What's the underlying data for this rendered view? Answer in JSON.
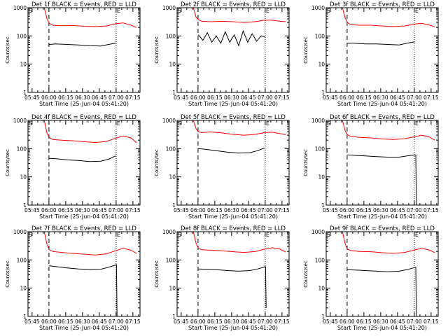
{
  "page": {
    "background": "#ffffff",
    "axis_color": "#000000",
    "events_color": "#000000",
    "lld_color": "#ff0000"
  },
  "common": {
    "xlabel": "Start Time (25-Jun-04 05:41:20)",
    "ylabel": "Counts/sec",
    "xtick_labels": [
      "05:45",
      "06:00",
      "06:15",
      "06:30",
      "06:45",
      "07:00",
      "07:15"
    ],
    "ytick_labels": [
      "1",
      "10",
      "100",
      "1000"
    ],
    "marker_s": "S",
    "marker_e": "E"
  },
  "chart_data": [
    {
      "type": "line",
      "title": "Det 1f BLACK = Events, RED = LLD",
      "xlabel": "Start Time (25-Jun-04 05:41:20)",
      "ylabel": "Counts/sec",
      "xlim_min": [
        0,
        100
      ],
      "ylim": [
        1,
        1000
      ],
      "yscale": "log",
      "dashed_line_min": 18.7,
      "dotted_line_min": 78.7,
      "series": [
        {
          "name": "RED = LLD",
          "color": "#ff0000",
          "x": [
            14.5,
            17,
            19,
            22,
            30,
            40,
            50,
            60,
            70,
            78,
            85,
            92,
            97
          ],
          "y": [
            1000,
            400,
            280,
            240,
            230,
            235,
            220,
            215,
            225,
            270,
            290,
            240,
            200
          ]
        },
        {
          "name": "BLACK = Events",
          "color": "#000000",
          "x": [
            19,
            25,
            35,
            45,
            55,
            65,
            72,
            78
          ],
          "y": [
            50,
            52,
            50,
            48,
            45,
            44,
            50,
            55
          ]
        }
      ]
    },
    {
      "type": "line",
      "title": "Det 2f BLACK = Events, RED = LLD",
      "xlabel": "Start Time (25-Jun-04 05:41:20)",
      "ylabel": "Counts/sec",
      "xlim_min": [
        0,
        100
      ],
      "ylim": [
        1,
        1000
      ],
      "yscale": "log",
      "dashed_line_min": 18.7,
      "dotted_line_min": 78.7,
      "series": [
        {
          "name": "RED = LLD",
          "color": "#ff0000",
          "x": [
            14.5,
            17,
            19,
            22,
            30,
            40,
            50,
            60,
            70,
            78,
            85,
            92,
            97
          ],
          "y": [
            1000,
            450,
            380,
            330,
            320,
            330,
            320,
            300,
            320,
            360,
            360,
            330,
            320
          ]
        },
        {
          "name": "BLACK = Events",
          "color": "#000000",
          "x": [
            19,
            23,
            27,
            31,
            35,
            39,
            43,
            47,
            51,
            55,
            59,
            63,
            67,
            71,
            75,
            79
          ],
          "y": [
            110,
            70,
            130,
            60,
            100,
            55,
            140,
            60,
            110,
            45,
            150,
            60,
            120,
            65,
            100,
            90
          ]
        }
      ]
    },
    {
      "type": "line",
      "title": "Det 3f BLACK = Events, RED = LLD",
      "xlabel": "Start Time (25-Jun-04 05:41:20)",
      "ylabel": "Counts/sec",
      "xlim_min": [
        0,
        100
      ],
      "ylim": [
        1,
        1000
      ],
      "yscale": "log",
      "dashed_line_min": 18.7,
      "dotted_line_min": 78.7,
      "series": [
        {
          "name": "RED = LLD",
          "color": "#ff0000",
          "x": [
            14.5,
            17,
            19,
            22,
            30,
            40,
            50,
            60,
            70,
            78,
            85,
            92,
            97
          ],
          "y": [
            1000,
            420,
            300,
            250,
            240,
            240,
            225,
            215,
            225,
            260,
            280,
            245,
            210
          ]
        },
        {
          "name": "BLACK = Events",
          "color": "#000000",
          "x": [
            19,
            25,
            35,
            45,
            55,
            65,
            72,
            79
          ],
          "y": [
            55,
            55,
            52,
            52,
            50,
            48,
            55,
            62
          ]
        }
      ]
    },
    {
      "type": "line",
      "title": "Det 4f BLACK = Events, RED = LLD",
      "xlabel": "Start Time (25-Jun-04 05:41:20)",
      "ylabel": "Counts/sec",
      "xlim_min": [
        0,
        100
      ],
      "ylim": [
        1,
        1000
      ],
      "yscale": "log",
      "dashed_line_min": 18.7,
      "dotted_line_min": 78.7,
      "series": [
        {
          "name": "RED = LLD",
          "color": "#ff0000",
          "x": [
            14.5,
            17,
            19,
            22,
            30,
            40,
            50,
            60,
            70,
            78,
            85,
            92,
            97
          ],
          "y": [
            1000,
            350,
            250,
            210,
            200,
            190,
            175,
            165,
            180,
            230,
            280,
            240,
            160
          ]
        },
        {
          "name": "BLACK = Events",
          "color": "#000000",
          "x": [
            19,
            25,
            35,
            45,
            55,
            65,
            72,
            78
          ],
          "y": [
            45,
            44,
            40,
            38,
            35,
            36,
            42,
            55
          ]
        }
      ]
    },
    {
      "type": "line",
      "title": "Det 5f BLACK = Events, RED = LLD",
      "xlabel": "Start Time (25-Jun-04 05:41:20)",
      "ylabel": "Counts/sec",
      "xlim_min": [
        0,
        100
      ],
      "ylim": [
        1,
        1000
      ],
      "yscale": "log",
      "dashed_line_min": 18.7,
      "dotted_line_min": 78.7,
      "series": [
        {
          "name": "RED = LLD",
          "color": "#ff0000",
          "x": [
            14.5,
            17,
            19,
            22,
            30,
            40,
            50,
            60,
            70,
            78,
            85,
            92,
            97
          ],
          "y": [
            1000,
            500,
            400,
            370,
            390,
            360,
            320,
            300,
            320,
            370,
            380,
            340,
            310
          ]
        },
        {
          "name": "BLACK = Events",
          "color": "#000000",
          "x": [
            19,
            25,
            35,
            45,
            55,
            65,
            72,
            78
          ],
          "y": [
            100,
            95,
            85,
            75,
            70,
            72,
            85,
            105
          ]
        }
      ]
    },
    {
      "type": "line",
      "title": "Det 6f BLACK = Events, RED = LLD",
      "xlabel": "Start Time (25-Jun-04 05:41:20)",
      "ylabel": "Counts/sec",
      "xlim_min": [
        0,
        100
      ],
      "ylim": [
        1,
        1000
      ],
      "yscale": "log",
      "dashed_line_min": 18.7,
      "dotted_line_min": 78.7,
      "series": [
        {
          "name": "RED = LLD",
          "color": "#ff0000",
          "x": [
            14.5,
            17,
            19,
            22,
            30,
            40,
            50,
            60,
            70,
            78,
            85,
            92,
            97
          ],
          "y": [
            1000,
            420,
            310,
            270,
            250,
            240,
            220,
            210,
            225,
            260,
            300,
            260,
            200
          ]
        },
        {
          "name": "BLACK = Events",
          "color": "#000000",
          "x": [
            19,
            25,
            35,
            45,
            55,
            65,
            72,
            80,
            80.5
          ],
          "y": [
            60,
            58,
            55,
            52,
            50,
            50,
            55,
            60,
            1
          ]
        }
      ]
    },
    {
      "type": "line",
      "title": "Det 7f BLACK = Events, RED = LLD",
      "xlabel": "Start Time (25-Jun-04 05:41:20)",
      "ylabel": "Counts/sec",
      "xlim_min": [
        0,
        100
      ],
      "ylim": [
        1,
        1000
      ],
      "yscale": "log",
      "dashed_line_min": 18.7,
      "dotted_line_min": 78.7,
      "series": [
        {
          "name": "RED = LLD",
          "color": "#ff0000",
          "x": [
            14.5,
            17,
            19,
            22,
            30,
            40,
            50,
            60,
            70,
            78,
            85,
            92,
            97
          ],
          "y": [
            1000,
            350,
            230,
            200,
            185,
            170,
            160,
            150,
            165,
            210,
            260,
            220,
            170
          ]
        },
        {
          "name": "BLACK = Events",
          "color": "#000000",
          "x": [
            19,
            25,
            35,
            45,
            55,
            65,
            72,
            79,
            79.5
          ],
          "y": [
            62,
            58,
            52,
            48,
            46,
            47,
            55,
            68,
            1
          ]
        }
      ]
    },
    {
      "type": "line",
      "title": "Det 8f BLACK = Events, RED = LLD",
      "xlabel": "Start Time (25-Jun-04 05:41:20)",
      "ylabel": "Counts/sec",
      "xlim_min": [
        0,
        100
      ],
      "ylim": [
        1,
        1000
      ],
      "yscale": "log",
      "dashed_line_min": 18.7,
      "dotted_line_min": 78.7,
      "series": [
        {
          "name": "RED = LLD",
          "color": "#ff0000",
          "x": [
            14.5,
            17,
            19,
            22,
            30,
            40,
            50,
            60,
            70,
            78,
            85,
            92,
            97
          ],
          "y": [
            1000,
            380,
            260,
            230,
            220,
            210,
            195,
            185,
            200,
            240,
            270,
            240,
            190
          ]
        },
        {
          "name": "BLACK = Events",
          "color": "#000000",
          "x": [
            19,
            25,
            35,
            45,
            55,
            65,
            72,
            79,
            79.5
          ],
          "y": [
            48,
            47,
            45,
            42,
            40,
            42,
            48,
            58,
            2
          ]
        }
      ]
    },
    {
      "type": "line",
      "title": "Det 9f BLACK = Events, RED = LLD",
      "xlabel": "Start Time (25-Jun-04 05:41:20)",
      "ylabel": "Counts/sec",
      "xlim_min": [
        0,
        100
      ],
      "ylim": [
        1,
        1000
      ],
      "yscale": "log",
      "dashed_line_min": 18.7,
      "dotted_line_min": 78.7,
      "series": [
        {
          "name": "RED = LLD",
          "color": "#ff0000",
          "x": [
            14.5,
            17,
            19,
            22,
            30,
            40,
            50,
            60,
            70,
            78,
            85,
            92,
            97
          ],
          "y": [
            1000,
            360,
            240,
            215,
            200,
            195,
            180,
            170,
            185,
            220,
            260,
            225,
            180
          ]
        },
        {
          "name": "BLACK = Events",
          "color": "#000000",
          "x": [
            19,
            25,
            35,
            45,
            55,
            65,
            72,
            80,
            80.5
          ],
          "y": [
            45,
            44,
            42,
            40,
            38,
            40,
            45,
            55,
            1
          ]
        }
      ]
    }
  ]
}
